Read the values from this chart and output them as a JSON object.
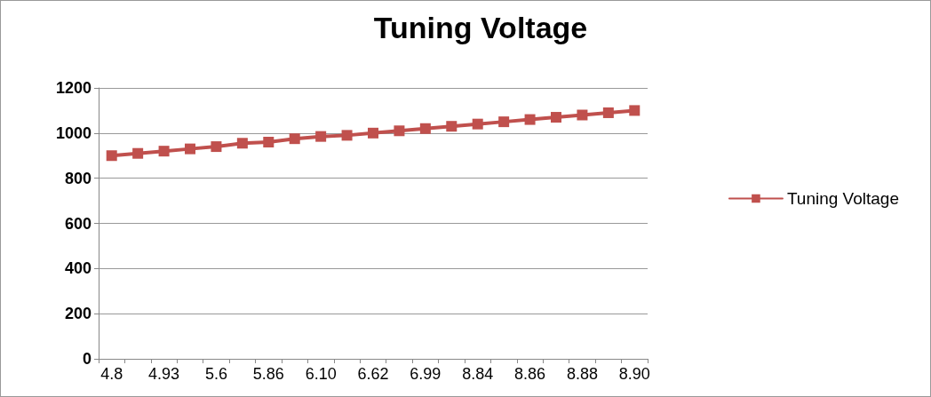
{
  "chart_data": {
    "type": "line",
    "title": "Tuning Voltage",
    "categories": [
      "4.8",
      null,
      "4.93",
      null,
      "5.6",
      null,
      "5.86",
      null,
      "6.10",
      null,
      "6.62",
      null,
      "6.99",
      null,
      "8.84",
      null,
      "8.86",
      null,
      "8.88",
      null,
      "8.90"
    ],
    "series": [
      {
        "name": "Tuning Voltage",
        "color": "#c0504d",
        "values": [
          900,
          910,
          920,
          930,
          940,
          955,
          960,
          975,
          985,
          990,
          1000,
          1010,
          1020,
          1030,
          1040,
          1050,
          1060,
          1070,
          1080,
          1090,
          1100
        ]
      }
    ],
    "ylim": [
      0,
      1200
    ],
    "yticks": [
      0,
      200,
      400,
      600,
      800,
      1000,
      1200
    ],
    "grid": "y",
    "legend": "right",
    "marker": "square",
    "line_style": "solid"
  }
}
